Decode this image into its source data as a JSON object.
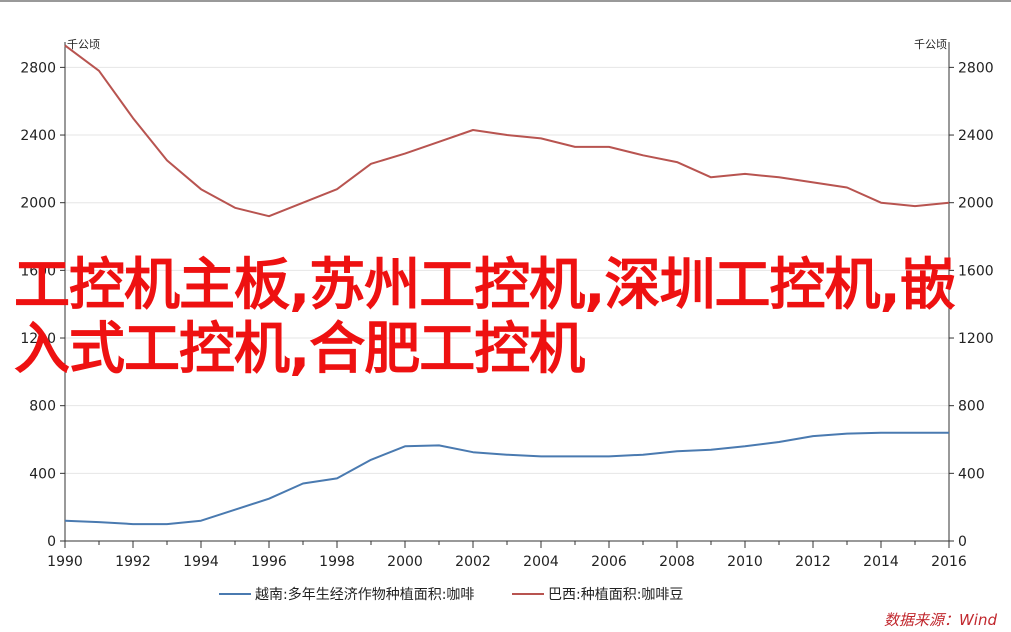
{
  "chart_data": {
    "type": "line",
    "left_axis_unit": "千公顷",
    "right_axis_unit": "千公顷",
    "x": [
      1990,
      1991,
      1992,
      1993,
      1994,
      1995,
      1996,
      1997,
      1998,
      1999,
      2000,
      2001,
      2002,
      2003,
      2004,
      2005,
      2006,
      2007,
      2008,
      2009,
      2010,
      2011,
      2012,
      2013,
      2014,
      2015,
      2016
    ],
    "x_ticks": [
      1990,
      1992,
      1994,
      1996,
      1998,
      2000,
      2002,
      2004,
      2006,
      2008,
      2010,
      2012,
      2014,
      2016
    ],
    "y_ticks": [
      0,
      400,
      800,
      1200,
      1600,
      2000,
      2400,
      2800
    ],
    "ylim": [
      0,
      2950
    ],
    "series": [
      {
        "name": "越南:多年生经济作物种植面积:咖啡",
        "color": "#4a7ab0",
        "values": [
          120,
          112,
          100,
          100,
          120,
          185,
          250,
          340,
          370,
          480,
          560,
          565,
          525,
          510,
          500,
          500,
          500,
          510,
          530,
          540,
          560,
          585,
          620,
          635,
          640,
          640,
          640
        ]
      },
      {
        "name": "巴西:种植面积:咖啡豆",
        "color": "#b85450",
        "values": [
          2930,
          2780,
          2500,
          2250,
          2080,
          1970,
          1920,
          2000,
          2080,
          2230,
          2290,
          2360,
          2430,
          2400,
          2380,
          2330,
          2330,
          2280,
          2240,
          2150,
          2170,
          2150,
          2120,
          2090,
          2000,
          1980,
          2000
        ]
      }
    ]
  },
  "overlay_text": "工控机主板,苏州工控机,深圳工控机,嵌入式工控机,合肥工控机",
  "source_text": "数据来源：Wind"
}
